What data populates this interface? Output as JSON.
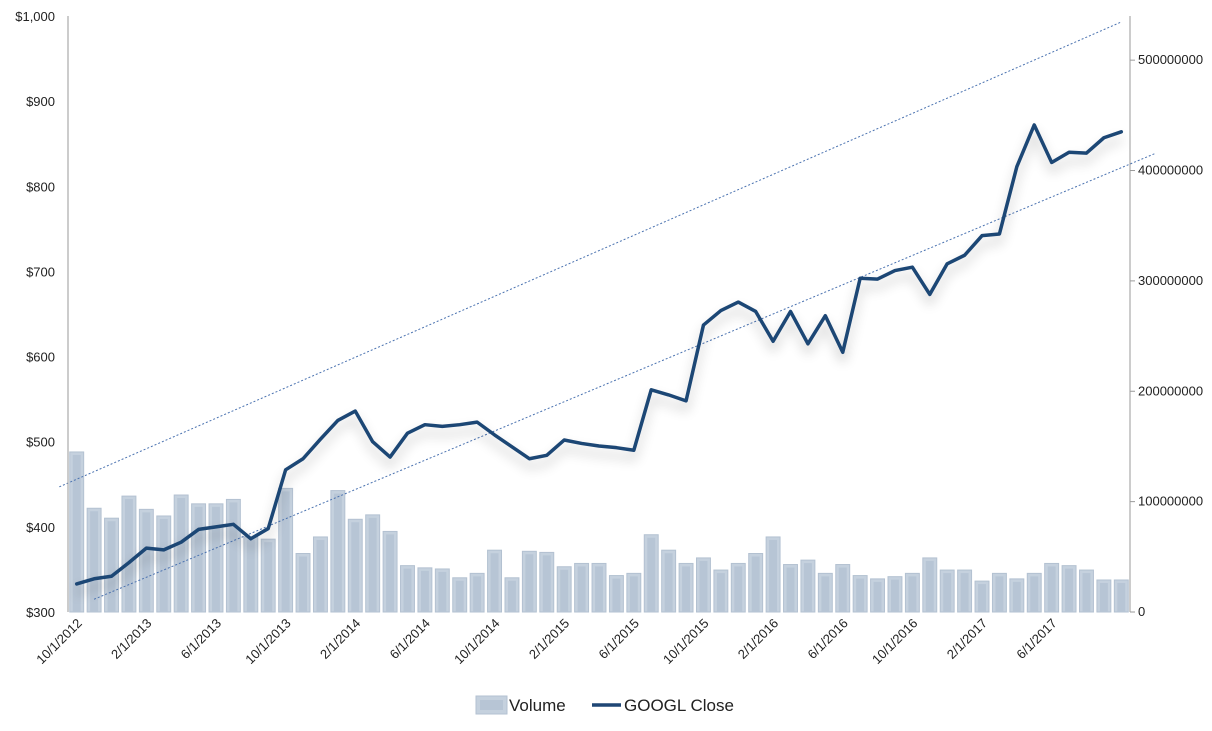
{
  "chart_data": {
    "type": "bar+line",
    "title": "",
    "categories": [
      "10/1/2012",
      "11/1/2012",
      "12/1/2012",
      "1/1/2013",
      "2/1/2013",
      "3/1/2013",
      "4/1/2013",
      "5/1/2013",
      "6/1/2013",
      "7/1/2013",
      "8/1/2013",
      "9/1/2013",
      "10/1/2013",
      "11/1/2013",
      "12/1/2013",
      "1/1/2014",
      "2/1/2014",
      "3/1/2014",
      "4/1/2014",
      "5/1/2014",
      "6/1/2014",
      "7/1/2014",
      "8/1/2014",
      "9/1/2014",
      "10/1/2014",
      "11/1/2014",
      "12/1/2014",
      "1/1/2015",
      "2/1/2015",
      "3/1/2015",
      "4/1/2015",
      "5/1/2015",
      "6/1/2015",
      "7/1/2015",
      "8/1/2015",
      "9/1/2015",
      "10/1/2015",
      "11/1/2015",
      "12/1/2015",
      "1/1/2016",
      "2/1/2016",
      "3/1/2016",
      "4/1/2016",
      "5/1/2016",
      "6/1/2016",
      "7/1/2016",
      "8/1/2016",
      "9/1/2016",
      "10/1/2016",
      "11/1/2016",
      "12/1/2016",
      "1/1/2017",
      "2/1/2017",
      "3/1/2017",
      "4/1/2017",
      "5/1/2017",
      "6/1/2017",
      "7/1/2017",
      "8/1/2017",
      "9/1/2017",
      "10/1/2017"
    ],
    "x_tick_labels": [
      "10/1/2012",
      "2/1/2013",
      "6/1/2013",
      "10/1/2013",
      "2/1/2014",
      "6/1/2014",
      "10/1/2014",
      "2/1/2015",
      "6/1/2015",
      "10/1/2015",
      "2/1/2016",
      "6/1/2016",
      "10/1/2016",
      "2/1/2017",
      "6/1/2017"
    ],
    "x_tick_indices": [
      0,
      4,
      8,
      12,
      16,
      20,
      24,
      28,
      32,
      36,
      40,
      44,
      48,
      52,
      56
    ],
    "series": [
      {
        "name": "Volume",
        "type": "bar",
        "axis": "right",
        "color": "#c5d1de",
        "values": [
          145000000,
          94000000,
          85000000,
          105000000,
          93000000,
          87000000,
          106000000,
          98000000,
          98000000,
          102000000,
          68000000,
          66000000,
          112000000,
          53000000,
          68000000,
          110000000,
          84000000,
          88000000,
          73000000,
          42000000,
          40000000,
          39000000,
          31000000,
          35000000,
          56000000,
          31000000,
          55000000,
          54000000,
          41000000,
          44000000,
          44000000,
          33000000,
          35000000,
          70000000,
          56000000,
          44000000,
          49000000,
          38000000,
          44000000,
          53000000,
          68000000,
          43000000,
          47000000,
          35000000,
          43000000,
          33000000,
          30000000,
          32000000,
          35000000,
          49000000,
          38000000,
          38000000,
          28000000,
          35000000,
          30000000,
          35000000,
          44000000,
          42000000,
          38000000,
          29000000,
          29000000
        ]
      },
      {
        "name": "GOOGL Close",
        "type": "line",
        "axis": "left",
        "color": "#1f4675",
        "values": [
          333,
          339,
          342,
          358,
          375,
          373,
          382,
          397,
          400,
          403,
          386,
          398,
          467,
          480,
          503,
          525,
          536,
          500,
          482,
          510,
          520,
          518,
          520,
          523,
          508,
          494,
          480,
          484,
          502,
          498,
          495,
          493,
          490,
          561,
          555,
          548,
          637,
          654,
          664,
          653,
          618,
          653,
          615,
          648,
          605,
          692,
          691,
          701,
          705,
          673,
          709,
          719,
          742,
          744,
          823,
          872,
          828,
          840,
          839,
          857,
          864
        ]
      },
      {
        "name": "",
        "type": "trendline-upper",
        "axis": "left",
        "x_range_index": [
          -1,
          60
        ],
        "y_range": [
          447,
          993
        ]
      },
      {
        "name": "",
        "type": "trendline-lower",
        "axis": "left",
        "x_range_index": [
          1,
          62
        ],
        "y_range": [
          315,
          839
        ]
      }
    ],
    "y_left": {
      "min": 300,
      "max": 1000,
      "step": 100,
      "tick_labels": [
        "$300",
        "$400",
        "$500",
        "$600",
        "$700",
        "$800",
        "$900",
        "$1,000"
      ]
    },
    "y_right": {
      "min": 0,
      "max": 540000000,
      "step": 100000000,
      "tick_labels": [
        "0",
        "100000000",
        "200000000",
        "300000000",
        "400000000",
        "500000000"
      ]
    },
    "xlabel": "",
    "ylabel": "",
    "grid": false,
    "legend": {
      "position": "bottom-center",
      "entries": [
        {
          "label": "Volume",
          "kind": "bar",
          "color": "#c5d1de"
        },
        {
          "label": "GOOGL Close",
          "kind": "line",
          "color": "#1f4675"
        }
      ]
    }
  }
}
